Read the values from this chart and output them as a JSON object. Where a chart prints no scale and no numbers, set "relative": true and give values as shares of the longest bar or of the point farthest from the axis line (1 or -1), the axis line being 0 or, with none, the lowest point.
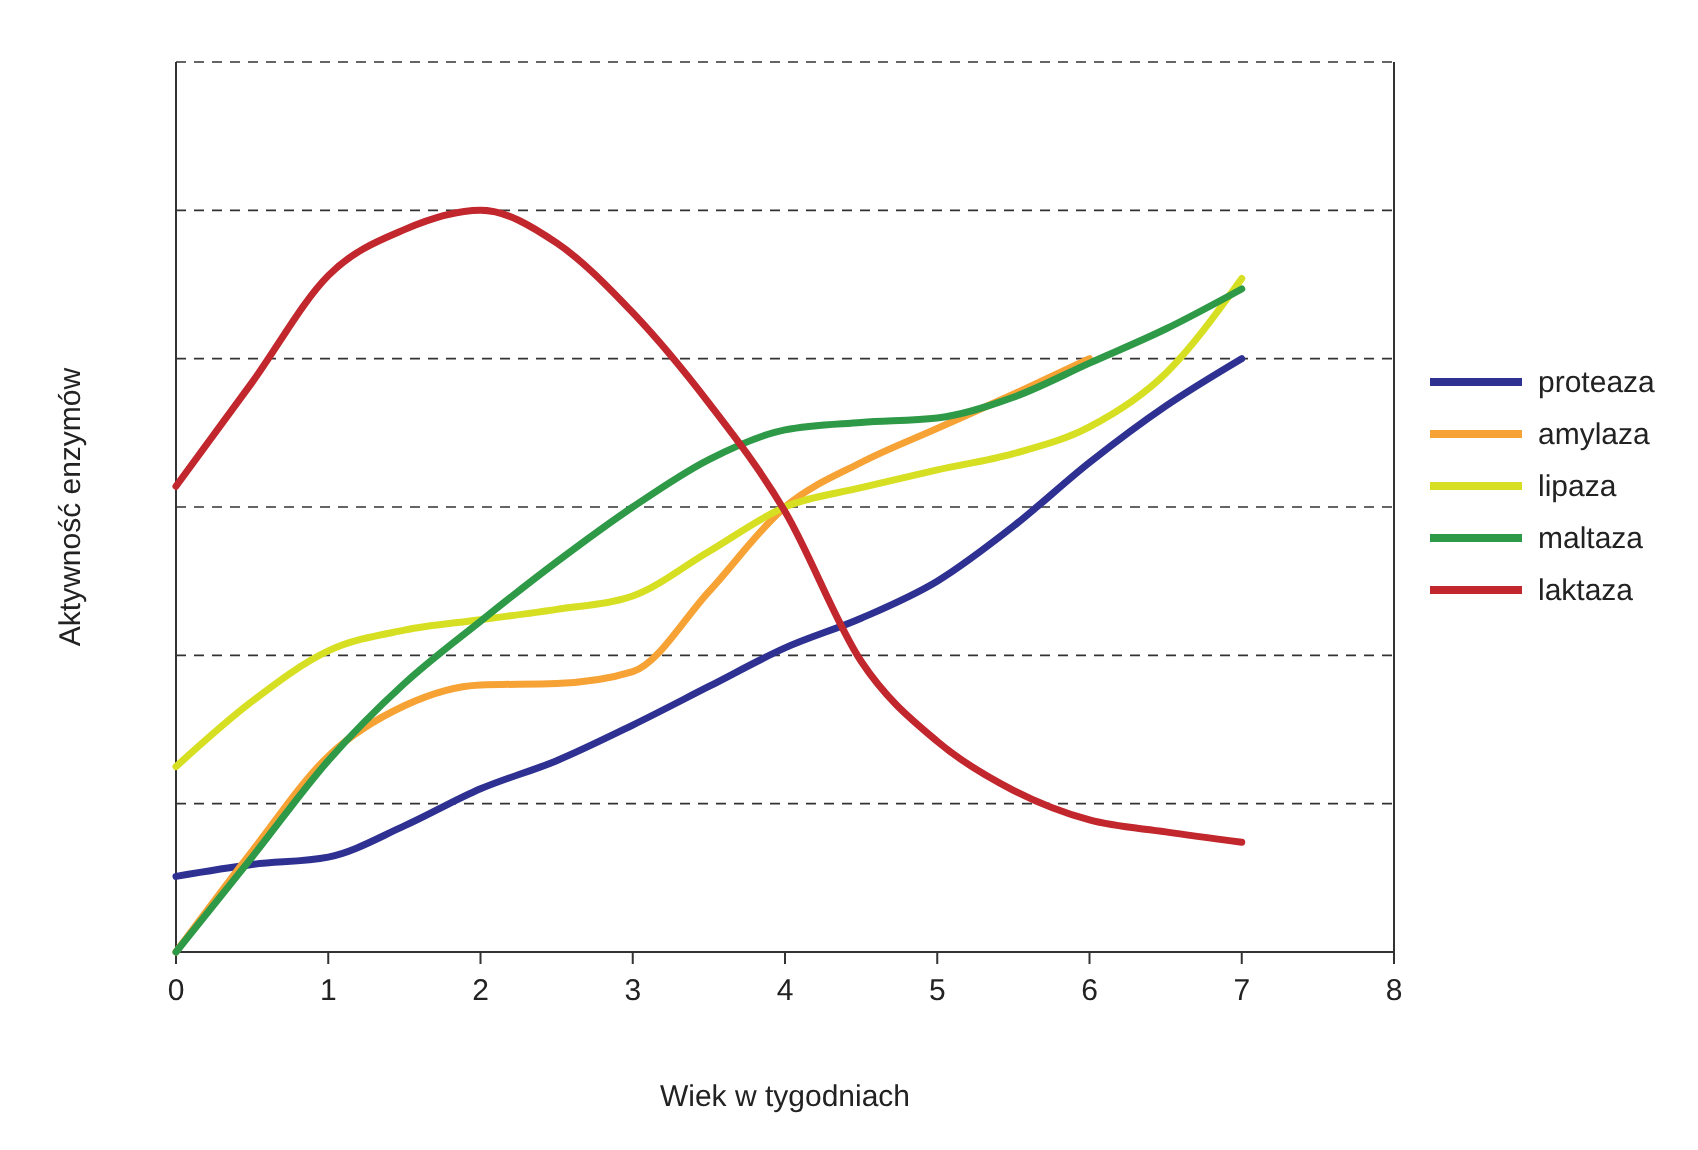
{
  "chart_data": {
    "type": "line",
    "relative": true,
    "xlabel": "Wiek w tygodniach",
    "ylabel": "Aktywność enzymów",
    "xlim": [
      0,
      8
    ],
    "xticks": [
      0,
      1,
      2,
      3,
      4,
      5,
      6,
      7,
      8
    ],
    "grid": "y",
    "legend": "right",
    "marker": "none",
    "line_style": "solid",
    "series": [
      {
        "name": "proteaza",
        "color": "#2e3192",
        "x": [
          0,
          0.5,
          1,
          1.5,
          2,
          2.5,
          3,
          3.5,
          4,
          4.5,
          5,
          5.5,
          6,
          6.5,
          7
        ],
        "values": [
          0.102,
          0.118,
          0.128,
          0.17,
          0.22,
          0.258,
          0.306,
          0.358,
          0.41,
          0.45,
          0.5,
          0.574,
          0.66,
          0.736,
          0.8
        ]
      },
      {
        "name": "amylaza",
        "color": "#f7a234",
        "x": [
          0,
          0.5,
          1,
          1.5,
          2,
          2.5,
          3,
          3.5,
          4,
          4.5,
          5,
          5.5,
          6
        ],
        "values": [
          0,
          0.136,
          0.264,
          0.332,
          0.36,
          0.362,
          0.378,
          0.486,
          0.6,
          0.66,
          0.706,
          0.752,
          0.8
        ]
      },
      {
        "name": "lipaza",
        "color": "#d7df23",
        "x": [
          0,
          0.5,
          1,
          1.5,
          2,
          2.5,
          3,
          3.5,
          4,
          4.5,
          5,
          5.5,
          6,
          6.5,
          7
        ],
        "values": [
          0.25,
          0.338,
          0.406,
          0.434,
          0.448,
          0.462,
          0.48,
          0.54,
          0.6,
          0.626,
          0.65,
          0.672,
          0.708,
          0.78,
          0.908
        ]
      },
      {
        "name": "maltaza",
        "color": "#2e9a47",
        "x": [
          0,
          0.5,
          1,
          1.5,
          2,
          2.5,
          3,
          3.5,
          4,
          4.5,
          5,
          5.5,
          6,
          6.5,
          7
        ],
        "values": [
          0,
          0.128,
          0.258,
          0.362,
          0.446,
          0.526,
          0.6,
          0.664,
          0.704,
          0.714,
          0.72,
          0.748,
          0.794,
          0.84,
          0.894
        ]
      },
      {
        "name": "laktaza",
        "color": "#c1272d",
        "x": [
          0,
          0.5,
          1,
          1.5,
          2,
          2.5,
          3,
          3.5,
          4,
          4.5,
          5,
          5.5,
          6,
          6.5,
          7
        ],
        "values": [
          0.628,
          0.768,
          0.912,
          0.974,
          1,
          0.956,
          0.862,
          0.74,
          0.594,
          0.392,
          0.284,
          0.218,
          0.178,
          0.162,
          0.148
        ]
      }
    ]
  }
}
